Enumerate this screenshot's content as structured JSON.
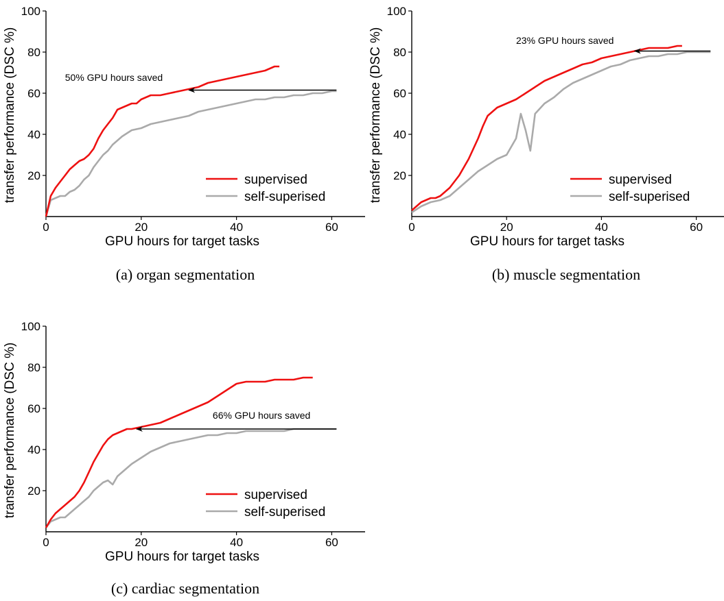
{
  "chart_data": [
    {
      "type": "line",
      "caption": "(a) organ segmentation",
      "xlabel": "GPU hours for target tasks",
      "ylabel": "transfer performance (DSC %)",
      "xlim": [
        0,
        67
      ],
      "ylim": [
        0,
        100
      ],
      "xticks": [
        0,
        20,
        40,
        60
      ],
      "yticks": [
        20,
        40,
        60,
        80,
        100
      ],
      "legend_position": "bottom-right",
      "grid": false,
      "annotation": {
        "text": "50% GPU hours saved",
        "arrow_from": [
          61,
          61.5
        ],
        "arrow_to": [
          30,
          61.5
        ],
        "text_at": [
          4,
          66
        ]
      },
      "series": [
        {
          "name": "supervised",
          "color": "#ee1111",
          "x": [
            0,
            1,
            2,
            3,
            4,
            5,
            6,
            7,
            8,
            9,
            10,
            11,
            12,
            13,
            14,
            15,
            16,
            17,
            18,
            19,
            20,
            22,
            24,
            26,
            28,
            30,
            32,
            34,
            36,
            38,
            40,
            42,
            44,
            46,
            48,
            49
          ],
          "y": [
            0,
            10,
            14,
            17,
            20,
            23,
            25,
            27,
            28,
            30,
            33,
            38,
            42,
            45,
            48,
            52,
            53,
            54,
            55,
            55,
            57,
            59,
            59,
            60,
            61,
            62,
            63,
            65,
            66,
            67,
            68,
            69,
            70,
            71,
            73,
            73
          ]
        },
        {
          "name": "self-superised",
          "color": "#aaaaaa",
          "x": [
            0,
            1,
            2,
            3,
            4,
            5,
            6,
            7,
            8,
            9,
            10,
            11,
            12,
            13,
            14,
            15,
            16,
            18,
            20,
            22,
            24,
            26,
            28,
            30,
            32,
            34,
            36,
            38,
            40,
            42,
            44,
            46,
            48,
            50,
            52,
            54,
            56,
            58,
            60,
            61
          ],
          "y": [
            0,
            8,
            9,
            10,
            10,
            12,
            13,
            15,
            18,
            20,
            24,
            27,
            30,
            32,
            35,
            37,
            39,
            42,
            43,
            45,
            46,
            47,
            48,
            49,
            51,
            52,
            53,
            54,
            55,
            56,
            57,
            57,
            58,
            58,
            59,
            59,
            60,
            60,
            61,
            61
          ]
        }
      ]
    },
    {
      "type": "line",
      "caption": "(b) muscle segmentation",
      "xlabel": "GPU hours for target tasks",
      "ylabel": "transfer performance (DSC %)",
      "xlim": [
        0,
        67
      ],
      "ylim": [
        0,
        100
      ],
      "xticks": [
        0,
        20,
        40,
        60
      ],
      "yticks": [
        20,
        40,
        60,
        80,
        100
      ],
      "legend_position": "bottom-right",
      "grid": false,
      "annotation": {
        "text": "23% GPU hours saved",
        "arrow_from": [
          63,
          80.5
        ],
        "arrow_to": [
          47,
          80.5
        ],
        "text_at": [
          22,
          84
        ]
      },
      "series": [
        {
          "name": "supervised",
          "color": "#ee1111",
          "x": [
            0,
            1,
            2,
            3,
            4,
            5,
            6,
            7,
            8,
            9,
            10,
            11,
            12,
            13,
            14,
            15,
            16,
            17,
            18,
            20,
            22,
            24,
            26,
            28,
            30,
            32,
            34,
            36,
            38,
            40,
            42,
            44,
            46,
            48,
            50,
            52,
            54,
            56,
            57
          ],
          "y": [
            3,
            5,
            7,
            8,
            9,
            9,
            10,
            12,
            14,
            17,
            20,
            24,
            28,
            33,
            38,
            44,
            49,
            51,
            53,
            55,
            57,
            60,
            63,
            66,
            68,
            70,
            72,
            74,
            75,
            77,
            78,
            79,
            80,
            81,
            82,
            82,
            82,
            83,
            83
          ]
        },
        {
          "name": "self-superised",
          "color": "#aaaaaa",
          "x": [
            0,
            2,
            4,
            6,
            8,
            10,
            12,
            14,
            16,
            18,
            20,
            22,
            23,
            24,
            25,
            26,
            28,
            30,
            32,
            34,
            36,
            38,
            40,
            42,
            44,
            46,
            48,
            50,
            52,
            54,
            56,
            58,
            60,
            62,
            63
          ],
          "y": [
            2,
            5,
            7,
            8,
            10,
            14,
            18,
            22,
            25,
            28,
            30,
            38,
            50,
            42,
            32,
            50,
            55,
            58,
            62,
            65,
            67,
            69,
            71,
            73,
            74,
            76,
            77,
            78,
            78,
            79,
            79,
            80,
            80,
            80,
            80
          ]
        }
      ]
    },
    {
      "type": "line",
      "caption": "(c) cardiac segmentation",
      "xlabel": "GPU hours for target tasks",
      "ylabel": "transfer performance (DSC %)",
      "xlim": [
        0,
        67
      ],
      "ylim": [
        0,
        100
      ],
      "xticks": [
        0,
        20,
        40,
        60
      ],
      "yticks": [
        20,
        40,
        60,
        80,
        100
      ],
      "legend_position": "bottom-right",
      "grid": false,
      "annotation": {
        "text": "66% GPU hours saved",
        "arrow_from": [
          61,
          50
        ],
        "arrow_to": [
          19,
          50
        ],
        "text_at": [
          35,
          55
        ]
      },
      "series": [
        {
          "name": "supervised",
          "color": "#ee1111",
          "x": [
            0,
            1,
            2,
            3,
            4,
            5,
            6,
            7,
            8,
            9,
            10,
            11,
            12,
            13,
            14,
            15,
            16,
            17,
            18,
            20,
            22,
            24,
            26,
            28,
            30,
            32,
            34,
            36,
            38,
            40,
            42,
            44,
            46,
            48,
            50,
            52,
            54,
            56
          ],
          "y": [
            2,
            6,
            9,
            11,
            13,
            15,
            17,
            20,
            24,
            29,
            34,
            38,
            42,
            45,
            47,
            48,
            49,
            50,
            50,
            51,
            52,
            53,
            55,
            57,
            59,
            61,
            63,
            66,
            69,
            72,
            73,
            73,
            73,
            74,
            74,
            74,
            75,
            75
          ]
        },
        {
          "name": "self-superised",
          "color": "#aaaaaa",
          "x": [
            0,
            1,
            2,
            3,
            4,
            5,
            6,
            7,
            8,
            9,
            10,
            11,
            12,
            13,
            14,
            15,
            16,
            18,
            20,
            22,
            24,
            26,
            28,
            30,
            32,
            34,
            36,
            38,
            40,
            42,
            44,
            46,
            48,
            50,
            52,
            54,
            56,
            58,
            60,
            61
          ],
          "y": [
            2,
            5,
            6,
            7,
            7,
            9,
            11,
            13,
            15,
            17,
            20,
            22,
            24,
            25,
            23,
            27,
            29,
            33,
            36,
            39,
            41,
            43,
            44,
            45,
            46,
            47,
            47,
            48,
            48,
            49,
            49,
            49,
            49,
            49,
            50,
            50,
            50,
            50,
            50,
            50
          ]
        }
      ]
    }
  ]
}
